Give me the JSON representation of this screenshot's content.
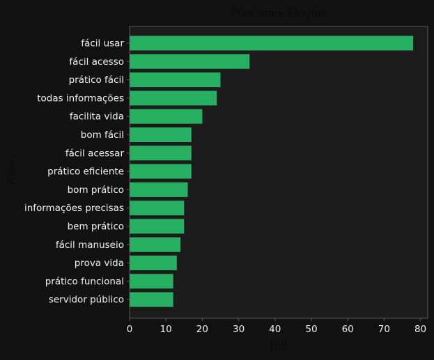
{
  "colors": {
    "page_background": "#121212",
    "plot_background": "#1c1c1c",
    "bar": "#27b062",
    "text": "#f0f0f0",
    "axis_label": "#0b0b0b",
    "axis_line": "#5a5a5a"
  },
  "chart_data": {
    "type": "bar",
    "orientation": "horizontal",
    "title": "Principais Elogios",
    "xlabel": "Qtd",
    "ylabel": "Frase",
    "xlim": [
      0,
      82
    ],
    "xticks": [
      0,
      10,
      20,
      30,
      40,
      50,
      60,
      70,
      80
    ],
    "categories": [
      "fácil usar",
      "fácil acesso",
      "prático fácil",
      "todas informações",
      "facilita vida",
      "bom fácil",
      "fácil acessar",
      "prático eficiente",
      "bom prático",
      "informações precisas",
      "bem prático",
      "fácil manuseio",
      "prova vida",
      "prático funcional",
      "servidor público"
    ],
    "values": [
      78,
      33,
      25,
      24,
      20,
      17,
      17,
      17,
      16,
      15,
      15,
      14,
      13,
      12,
      12
    ],
    "grid": false,
    "legend": "none"
  }
}
